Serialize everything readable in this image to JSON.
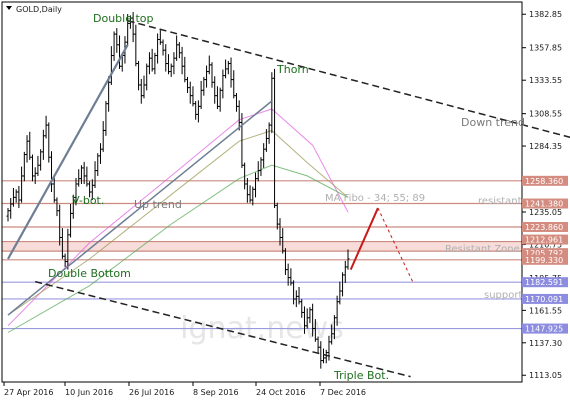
{
  "chart_data": {
    "type": "candlestick",
    "title": "",
    "symbol": "GOLD,Daily",
    "y_ticks": [
      1382.85,
      1357.85,
      1333.55,
      1308.55,
      1284.35,
      1235.05,
      1210.75,
      1185.75,
      1161.55,
      1137.3,
      1113.05
    ],
    "y_tick_labels": [
      "1382.85",
      "1357.85",
      "1333.55",
      "1308.55",
      "1284.35",
      "1235.05",
      "1210.75",
      "1185.75",
      "1161.55",
      "1137.30",
      "1113.05"
    ],
    "x_tick_labels": [
      "27 Apr 2016",
      "10 Jun 2016",
      "26 Jul 2016",
      "8 Sep 2016",
      "24 Oct 2016",
      "7 Dec 2016"
    ],
    "ylim": [
      1108,
      1392
    ],
    "level_labels": [
      "1258.360",
      "1241.380",
      "1223.860",
      "1212.961",
      "1205.792",
      "1199.330",
      "1182.591",
      "1170.091",
      "1147.925"
    ],
    "level_colors": {
      "resistance": "#cc8a80",
      "support": "#9a9ae0"
    },
    "annotations": [
      "Double top",
      "Thorn",
      "V-bot.",
      "Up trend",
      "Down trend",
      "MA Fibo - 34; 55; 89",
      "resistant",
      "Resistant Zone",
      "support",
      "Double Bottom",
      "Triple Bot."
    ],
    "watermark": "ignat.news",
    "closes": [
      1236,
      1241,
      1246,
      1250,
      1244,
      1262,
      1278,
      1288,
      1276,
      1262,
      1264,
      1270,
      1280,
      1292,
      1300,
      1276,
      1256,
      1244,
      1236,
      1216,
      1202,
      1198,
      1218,
      1234,
      1246,
      1256,
      1260,
      1268,
      1262,
      1256,
      1250,
      1255,
      1266,
      1277,
      1282,
      1296,
      1316,
      1332,
      1352,
      1368,
      1360,
      1344,
      1352,
      1362,
      1376,
      1380,
      1368,
      1346,
      1330,
      1322,
      1330,
      1344,
      1350,
      1342,
      1352,
      1364,
      1362,
      1356,
      1346,
      1340,
      1344,
      1350,
      1360,
      1354,
      1344,
      1334,
      1328,
      1322,
      1316,
      1308,
      1314,
      1326,
      1334,
      1340,
      1345,
      1332,
      1322,
      1314,
      1326,
      1337,
      1342,
      1346,
      1334,
      1322,
      1314,
      1302,
      1270,
      1256,
      1248,
      1244,
      1252,
      1260,
      1266,
      1274,
      1282,
      1290,
      1300,
      1335,
      1240,
      1226,
      1216,
      1206,
      1192,
      1186,
      1182,
      1170,
      1172,
      1168,
      1160,
      1150,
      1156,
      1162,
      1148,
      1140,
      1134,
      1124,
      1126,
      1130,
      1138,
      1144,
      1156,
      1168,
      1176,
      1188,
      1194,
      1200
    ],
    "series": [
      {
        "name": "MA 34",
        "color": "#e060e0",
        "values": [
          [
            0,
            1150
          ],
          [
            30,
            1212
          ],
          [
            60,
            1262
          ],
          [
            85,
            1304
          ],
          [
            97,
            1312
          ],
          [
            112,
            1285
          ],
          [
            125,
            1235
          ]
        ]
      },
      {
        "name": "MA 55",
        "color": "#9a9a55",
        "values": [
          [
            0,
            1158
          ],
          [
            30,
            1200
          ],
          [
            60,
            1248
          ],
          [
            85,
            1288
          ],
          [
            97,
            1296
          ],
          [
            110,
            1272
          ],
          [
            125,
            1246
          ]
        ]
      },
      {
        "name": "MA 89",
        "color": "#57a957",
        "values": [
          [
            0,
            1145
          ],
          [
            30,
            1180
          ],
          [
            60,
            1226
          ],
          [
            85,
            1260
          ],
          [
            97,
            1270
          ],
          [
            110,
            1262
          ],
          [
            125,
            1246
          ]
        ]
      }
    ],
    "trendlines": [
      {
        "kind": "up-channel",
        "color": "#6e7e94",
        "points": [
          [
            0,
            1200
          ],
          [
            44,
            1360
          ]
        ]
      },
      {
        "kind": "up-trend",
        "color": "#6e7e94",
        "points": [
          [
            0,
            1158
          ],
          [
            97,
            1318
          ]
        ]
      },
      {
        "kind": "down-upper",
        "color": "#222222",
        "points": [
          [
            44,
            1378
          ],
          [
            212,
            1288
          ]
        ]
      },
      {
        "kind": "down-lower",
        "color": "#222222",
        "points": [
          [
            10,
            1183
          ],
          [
            148,
            1112
          ]
        ]
      }
    ],
    "forecast": {
      "solid": [
        [
          126,
          1192
        ],
        [
          136,
          1238
        ]
      ],
      "dashed": [
        [
          136,
          1238
        ],
        [
          149,
          1182
        ]
      ]
    }
  }
}
